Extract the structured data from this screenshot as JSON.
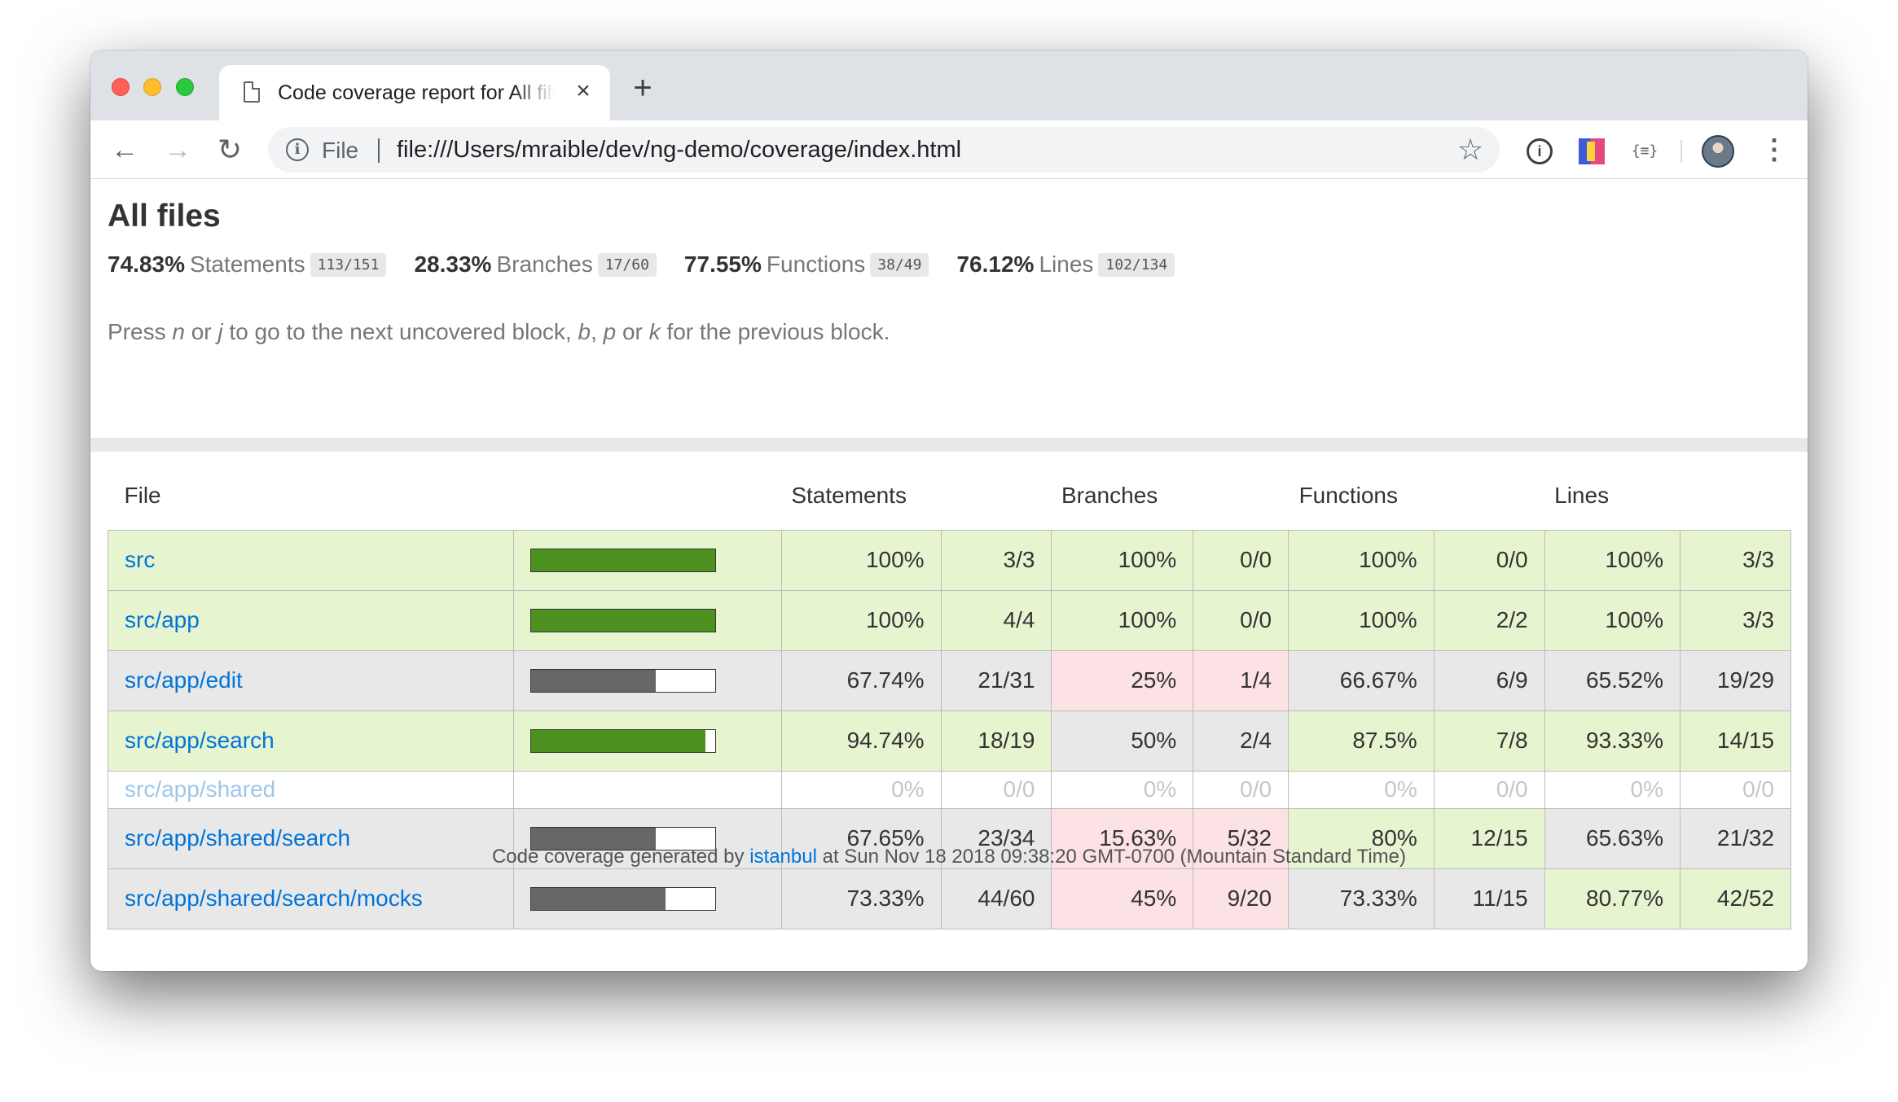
{
  "browser": {
    "tab_title": "Code coverage report for All files",
    "tab_close": "×",
    "new_tab": "+",
    "scheme_label": "File",
    "url": "file:///Users/mraible/dev/ng-demo/coverage/index.html",
    "back": "←",
    "forward": "→",
    "reload": "↻",
    "star": "☆",
    "ext_one": "i",
    "ext_three": "{≡}",
    "menu": "⋮"
  },
  "page": {
    "title": "All files",
    "summary": [
      {
        "pct": "74.83%",
        "label": "Statements",
        "frac": "113/151"
      },
      {
        "pct": "28.33%",
        "label": "Branches",
        "frac": "17/60"
      },
      {
        "pct": "77.55%",
        "label": "Functions",
        "frac": "38/49"
      },
      {
        "pct": "76.12%",
        "label": "Lines",
        "frac": "102/134"
      }
    ],
    "hint": {
      "p1": "Press ",
      "k1": "n",
      "p2": " or ",
      "k2": "j",
      "p3": " to go to the next uncovered block, ",
      "k3": "b",
      "p4": ", ",
      "k4": "p",
      "p5": " or ",
      "k5": "k",
      "p6": " for the previous block."
    },
    "table": {
      "headers": {
        "file": "File",
        "statements": "Statements",
        "branches": "Branches",
        "functions": "Functions",
        "lines": "Lines"
      },
      "colors": {
        "high": "#e6f5d0",
        "medium": "#e8e8e8",
        "low": "#fce1e5",
        "bar_high": "#4d9221",
        "bar_medium": "#666666"
      },
      "rows": [
        {
          "file": "src",
          "bar_fraction": 1.0,
          "bar_level": "high",
          "zero": false,
          "statements": {
            "pct": "100%",
            "frac": "3/3",
            "level": "high"
          },
          "branches": {
            "pct": "100%",
            "frac": "0/0",
            "level": "high"
          },
          "functions": {
            "pct": "100%",
            "frac": "0/0",
            "level": "high"
          },
          "lines": {
            "pct": "100%",
            "frac": "3/3",
            "level": "high"
          }
        },
        {
          "file": "src/app",
          "bar_fraction": 1.0,
          "bar_level": "high",
          "zero": false,
          "statements": {
            "pct": "100%",
            "frac": "4/4",
            "level": "high"
          },
          "branches": {
            "pct": "100%",
            "frac": "0/0",
            "level": "high"
          },
          "functions": {
            "pct": "100%",
            "frac": "2/2",
            "level": "high"
          },
          "lines": {
            "pct": "100%",
            "frac": "3/3",
            "level": "high"
          }
        },
        {
          "file": "src/app/edit",
          "bar_fraction": 0.6774,
          "bar_level": "medium",
          "zero": false,
          "statements": {
            "pct": "67.74%",
            "frac": "21/31",
            "level": "medium"
          },
          "branches": {
            "pct": "25%",
            "frac": "1/4",
            "level": "low"
          },
          "functions": {
            "pct": "66.67%",
            "frac": "6/9",
            "level": "medium"
          },
          "lines": {
            "pct": "65.52%",
            "frac": "19/29",
            "level": "medium"
          }
        },
        {
          "file": "src/app/search",
          "bar_fraction": 0.9474,
          "bar_level": "high",
          "zero": false,
          "statements": {
            "pct": "94.74%",
            "frac": "18/19",
            "level": "high"
          },
          "branches": {
            "pct": "50%",
            "frac": "2/4",
            "level": "medium"
          },
          "functions": {
            "pct": "87.5%",
            "frac": "7/8",
            "level": "high"
          },
          "lines": {
            "pct": "93.33%",
            "frac": "14/15",
            "level": "high"
          }
        },
        {
          "file": "src/app/shared",
          "bar_fraction": 0,
          "bar_level": "empty",
          "zero": true,
          "statements": {
            "pct": "0%",
            "frac": "0/0",
            "level": "empty"
          },
          "branches": {
            "pct": "0%",
            "frac": "0/0",
            "level": "empty"
          },
          "functions": {
            "pct": "0%",
            "frac": "0/0",
            "level": "empty"
          },
          "lines": {
            "pct": "0%",
            "frac": "0/0",
            "level": "empty"
          }
        },
        {
          "file": "src/app/shared/search",
          "bar_fraction": 0.6765,
          "bar_level": "medium",
          "zero": false,
          "statements": {
            "pct": "67.65%",
            "frac": "23/34",
            "level": "medium"
          },
          "branches": {
            "pct": "15.63%",
            "frac": "5/32",
            "level": "low"
          },
          "functions": {
            "pct": "80%",
            "frac": "12/15",
            "level": "high"
          },
          "lines": {
            "pct": "65.63%",
            "frac": "21/32",
            "level": "medium"
          }
        },
        {
          "file": "src/app/shared/search/mocks",
          "bar_fraction": 0.7333,
          "bar_level": "medium",
          "zero": false,
          "statements": {
            "pct": "73.33%",
            "frac": "44/60",
            "level": "medium"
          },
          "branches": {
            "pct": "45%",
            "frac": "9/20",
            "level": "low"
          },
          "functions": {
            "pct": "73.33%",
            "frac": "11/15",
            "level": "medium"
          },
          "lines": {
            "pct": "80.77%",
            "frac": "42/52",
            "level": "high"
          }
        }
      ]
    },
    "footer": {
      "prefix": "Code coverage generated by ",
      "link": "istanbul",
      "suffix": " at Sun Nov 18 2018 09:38:20 GMT-0700 (Mountain Standard Time)"
    }
  }
}
